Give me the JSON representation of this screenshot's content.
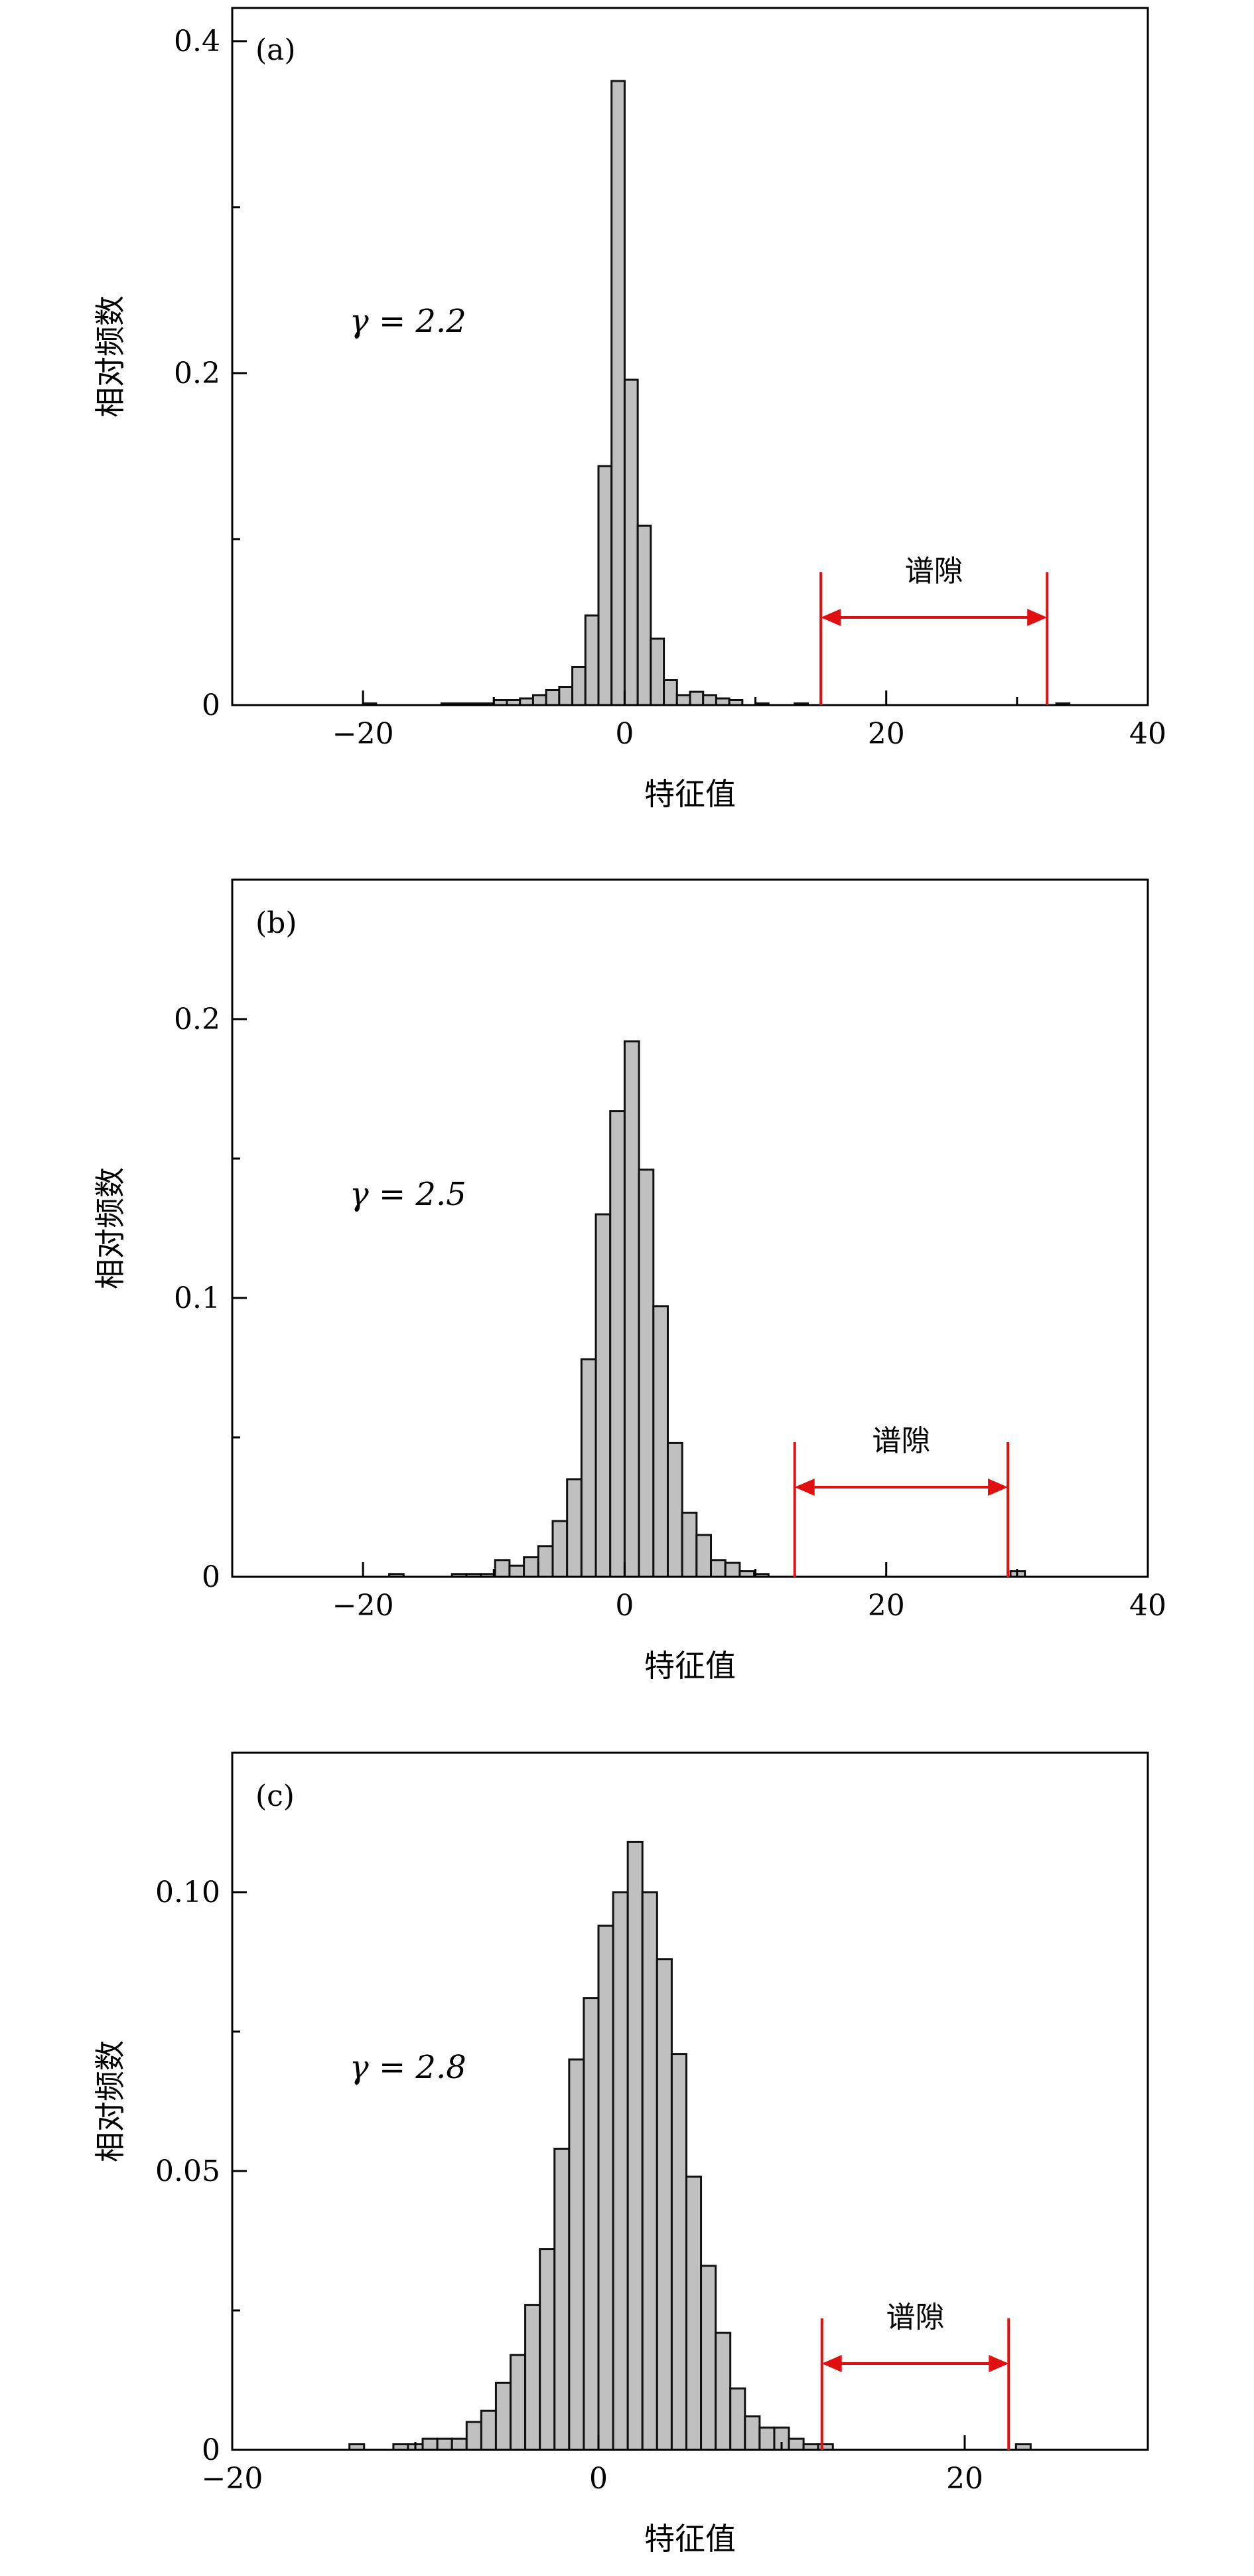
{
  "chart_data": [
    {
      "type": "bar",
      "panel": "(a)",
      "annotation": "γ = 2.2",
      "xlabel": "特征值",
      "ylabel": "相对频数",
      "xlim": [
        -30,
        40
      ],
      "ylim": [
        0,
        0.42
      ],
      "xticks": [
        -20,
        0,
        20,
        40
      ],
      "xtick_labels": [
        "−20",
        "0",
        "20",
        "40"
      ],
      "yticks": [
        0,
        0.2,
        0.4
      ],
      "ytick_labels": [
        "0",
        "0.2",
        "0.4"
      ],
      "bin_width": 1,
      "bins": [
        {
          "x": -20,
          "y": 0.001
        },
        {
          "x": -14,
          "y": 0.001
        },
        {
          "x": -13,
          "y": 0.001
        },
        {
          "x": -12,
          "y": 0.001
        },
        {
          "x": -11,
          "y": 0.001
        },
        {
          "x": -10,
          "y": 0.003
        },
        {
          "x": -9,
          "y": 0.003
        },
        {
          "x": -8,
          "y": 0.004
        },
        {
          "x": -7,
          "y": 0.006
        },
        {
          "x": -6,
          "y": 0.009
        },
        {
          "x": -5,
          "y": 0.011
        },
        {
          "x": -4,
          "y": 0.023
        },
        {
          "x": -3,
          "y": 0.054
        },
        {
          "x": -2,
          "y": 0.144
        },
        {
          "x": -1,
          "y": 0.376
        },
        {
          "x": 0,
          "y": 0.196
        },
        {
          "x": 1,
          "y": 0.108
        },
        {
          "x": 2,
          "y": 0.04
        },
        {
          "x": 3,
          "y": 0.015
        },
        {
          "x": 4,
          "y": 0.006
        },
        {
          "x": 5,
          "y": 0.008
        },
        {
          "x": 6,
          "y": 0.006
        },
        {
          "x": 7,
          "y": 0.004
        },
        {
          "x": 8,
          "y": 0.003
        },
        {
          "x": 10,
          "y": 0.001
        },
        {
          "x": 13,
          "y": 0.001
        },
        {
          "x": 33,
          "y": 0.001
        }
      ],
      "gap": {
        "label": "谱隙",
        "from": 15,
        "to": 32.3
      }
    },
    {
      "type": "bar",
      "panel": "(b)",
      "annotation": "γ = 2.5",
      "xlabel": "特征值",
      "ylabel": "相对频数",
      "xlim": [
        -30,
        40
      ],
      "ylim": [
        0,
        0.25
      ],
      "xticks": [
        -20,
        0,
        20,
        40
      ],
      "xtick_labels": [
        "−20",
        "0",
        "20",
        "40"
      ],
      "yticks": [
        0,
        0.1,
        0.2
      ],
      "ytick_labels": [
        "0",
        "0.1",
        "0.2"
      ],
      "bin_width": 1.1,
      "bins": [
        {
          "x": -18,
          "y": 0.001
        },
        {
          "x": -13.2,
          "y": 0.001
        },
        {
          "x": -12.1,
          "y": 0.001
        },
        {
          "x": -11,
          "y": 0.001
        },
        {
          "x": -9.9,
          "y": 0.006
        },
        {
          "x": -8.8,
          "y": 0.004
        },
        {
          "x": -7.7,
          "y": 0.007
        },
        {
          "x": -6.6,
          "y": 0.011
        },
        {
          "x": -5.5,
          "y": 0.02
        },
        {
          "x": -4.4,
          "y": 0.035
        },
        {
          "x": -3.3,
          "y": 0.078
        },
        {
          "x": -2.2,
          "y": 0.13
        },
        {
          "x": -1.1,
          "y": 0.167
        },
        {
          "x": 0,
          "y": 0.192
        },
        {
          "x": 1.1,
          "y": 0.146
        },
        {
          "x": 2.2,
          "y": 0.097
        },
        {
          "x": 3.3,
          "y": 0.048
        },
        {
          "x": 4.4,
          "y": 0.023
        },
        {
          "x": 5.5,
          "y": 0.015
        },
        {
          "x": 6.6,
          "y": 0.006
        },
        {
          "x": 7.7,
          "y": 0.005
        },
        {
          "x": 8.8,
          "y": 0.002
        },
        {
          "x": 9.9,
          "y": 0.001
        },
        {
          "x": 29.5,
          "y": 0.002
        }
      ],
      "gap": {
        "label": "谱隙",
        "from": 13,
        "to": 29.3
      }
    },
    {
      "type": "bar",
      "panel": "(c)",
      "annotation": "γ = 2.8",
      "xlabel": "特征值",
      "ylabel": "相对频数",
      "xlim": [
        -20,
        30
      ],
      "ylim": [
        0,
        0.125
      ],
      "xticks": [
        -20,
        0,
        20
      ],
      "xtick_labels": [
        "−20",
        "0",
        "20"
      ],
      "yticks": [
        0,
        0.05,
        0.1
      ],
      "ytick_labels": [
        "0",
        "0.05",
        "0.10"
      ],
      "bin_width": 0.8,
      "bins": [
        {
          "x": -13.6,
          "y": 0.001
        },
        {
          "x": -11.2,
          "y": 0.001
        },
        {
          "x": -10.4,
          "y": 0.001
        },
        {
          "x": -9.6,
          "y": 0.002
        },
        {
          "x": -8.8,
          "y": 0.002
        },
        {
          "x": -8,
          "y": 0.002
        },
        {
          "x": -7.2,
          "y": 0.005
        },
        {
          "x": -6.4,
          "y": 0.007
        },
        {
          "x": -5.6,
          "y": 0.012
        },
        {
          "x": -4.8,
          "y": 0.017
        },
        {
          "x": -4,
          "y": 0.026
        },
        {
          "x": -3.2,
          "y": 0.036
        },
        {
          "x": -2.4,
          "y": 0.054
        },
        {
          "x": -1.6,
          "y": 0.07
        },
        {
          "x": -0.8,
          "y": 0.081
        },
        {
          "x": 0,
          "y": 0.094
        },
        {
          "x": 0.8,
          "y": 0.1
        },
        {
          "x": 1.6,
          "y": 0.109
        },
        {
          "x": 2.4,
          "y": 0.1
        },
        {
          "x": 3.2,
          "y": 0.088
        },
        {
          "x": 4,
          "y": 0.071
        },
        {
          "x": 4.8,
          "y": 0.049
        },
        {
          "x": 5.6,
          "y": 0.033
        },
        {
          "x": 6.4,
          "y": 0.021
        },
        {
          "x": 7.2,
          "y": 0.011
        },
        {
          "x": 8,
          "y": 0.006
        },
        {
          "x": 8.8,
          "y": 0.004
        },
        {
          "x": 9.6,
          "y": 0.004
        },
        {
          "x": 10.4,
          "y": 0.002
        },
        {
          "x": 11.2,
          "y": 0.001
        },
        {
          "x": 12,
          "y": 0.001
        },
        {
          "x": 22.8,
          "y": 0.001
        }
      ],
      "gap": {
        "label": "谱隙",
        "from": 12.2,
        "to": 22.4
      }
    }
  ]
}
